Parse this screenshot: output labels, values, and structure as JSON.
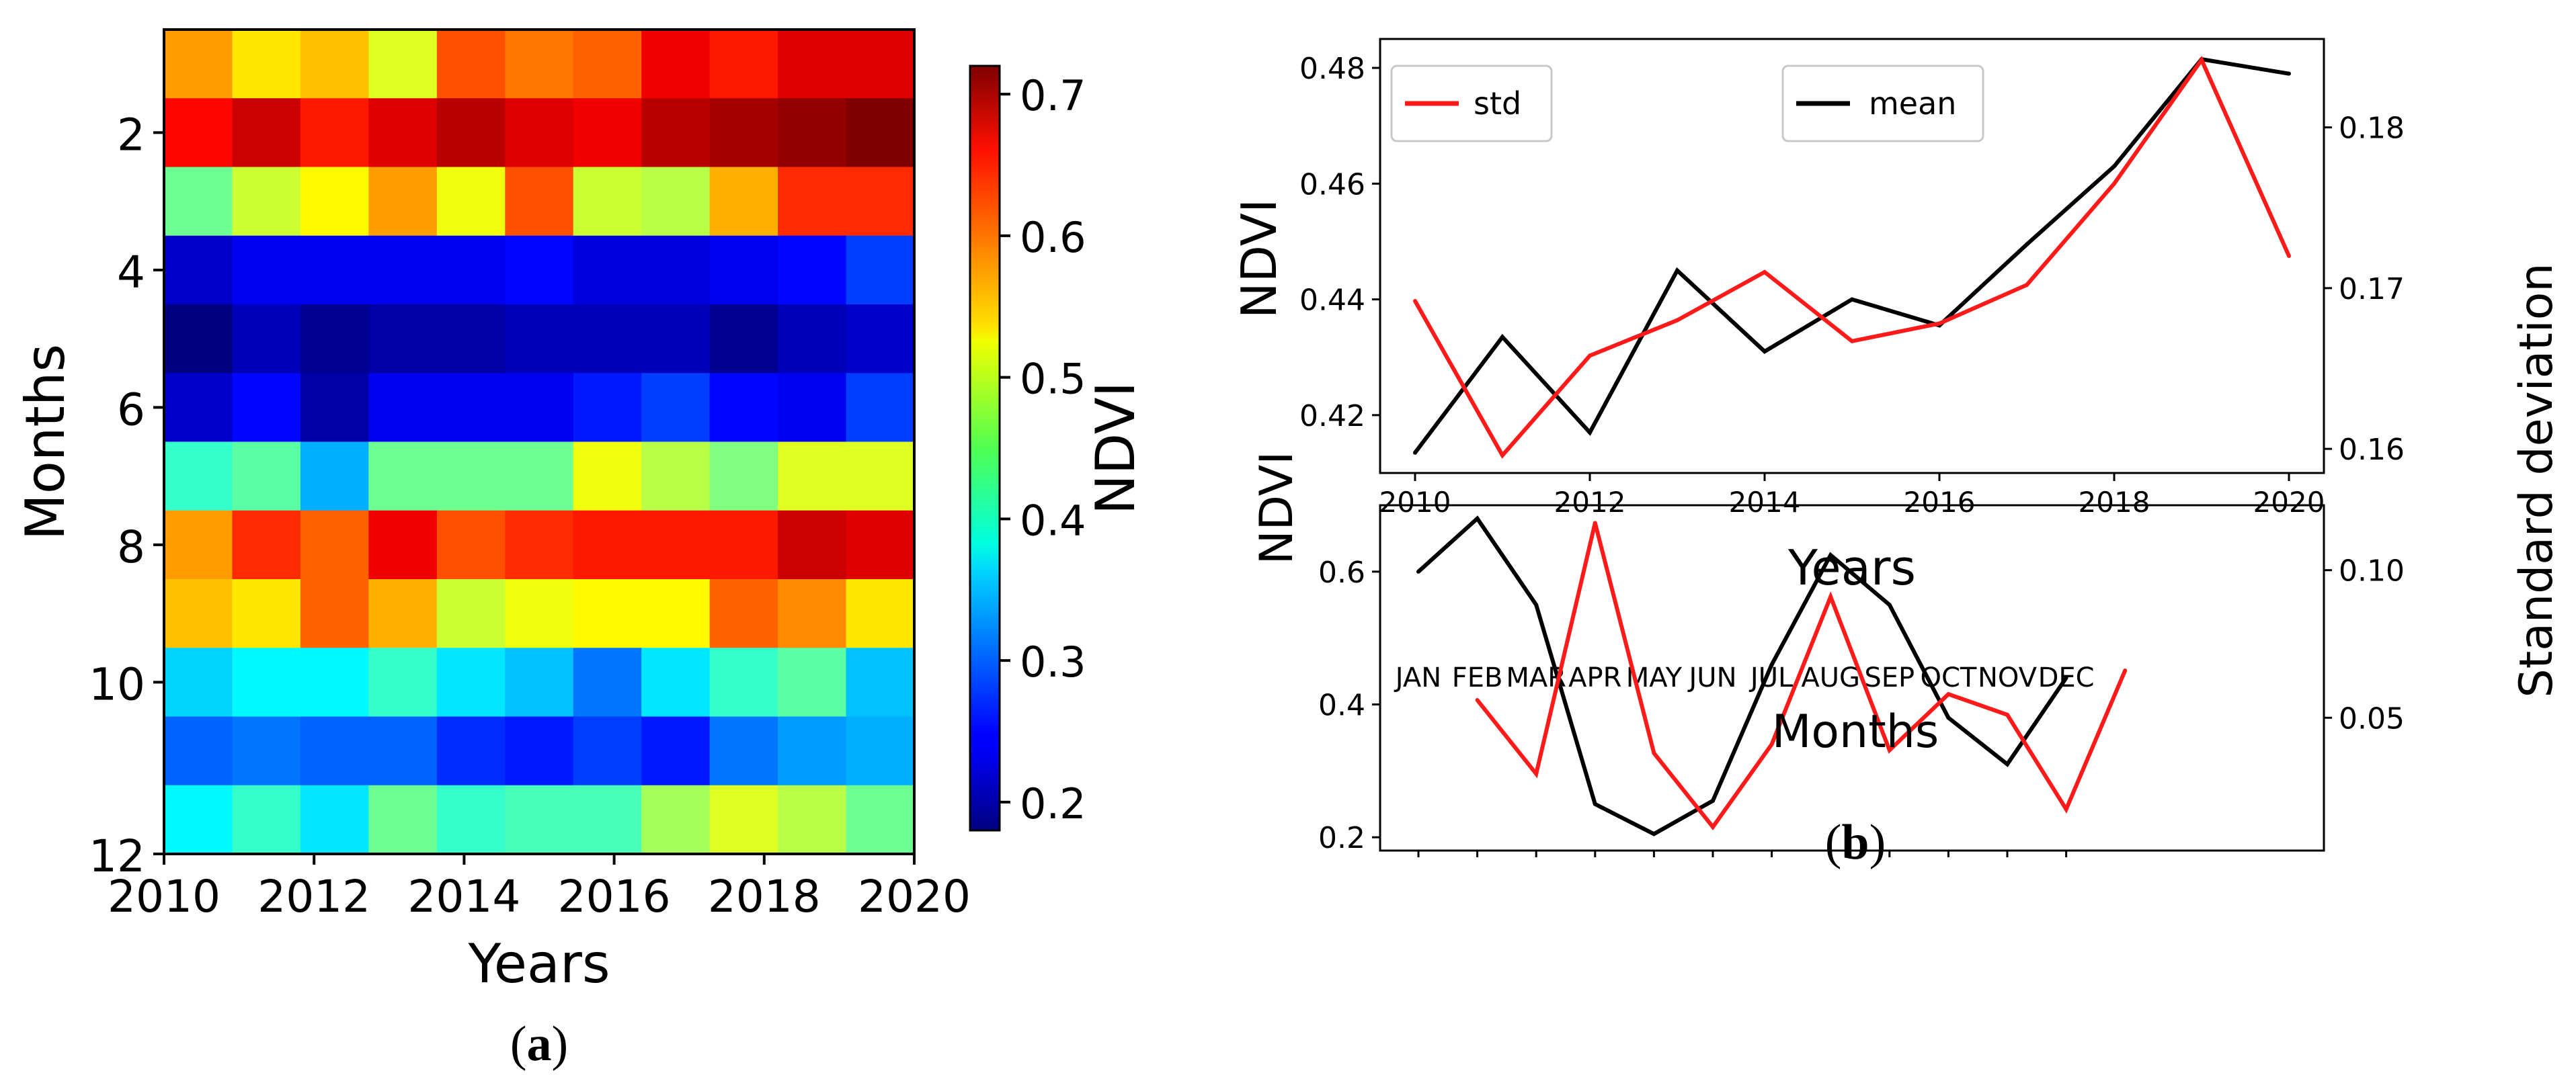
{
  "chart_data": [
    {
      "id": "a",
      "panel_label": "(a)",
      "panel_letter": "a",
      "type": "heatmap",
      "xlabel": "Years",
      "ylabel": "Months",
      "x_ticks": [
        "2010",
        "2012",
        "2014",
        "2016",
        "2018",
        "2020"
      ],
      "y_ticks": [
        "2",
        "4",
        "6",
        "8",
        "10",
        "12"
      ],
      "x_range": [
        2010,
        2020
      ],
      "y_range": [
        0.5,
        12
      ],
      "years": [
        "2010",
        "2011",
        "2012",
        "2013",
        "2014",
        "2015",
        "2016",
        "2017",
        "2018",
        "2019",
        "2020"
      ],
      "months": [
        1,
        2,
        3,
        4,
        5,
        6,
        7,
        8,
        9,
        10,
        11,
        12
      ],
      "values": [
        [
          0.57,
          0.53,
          0.55,
          0.5,
          0.61,
          0.59,
          0.6,
          0.66,
          0.64,
          0.67,
          0.67
        ],
        [
          0.65,
          0.68,
          0.64,
          0.67,
          0.69,
          0.67,
          0.66,
          0.69,
          0.7,
          0.71,
          0.72
        ],
        [
          0.44,
          0.49,
          0.52,
          0.57,
          0.51,
          0.61,
          0.49,
          0.48,
          0.56,
          0.63,
          0.63
        ],
        [
          0.22,
          0.24,
          0.24,
          0.24,
          0.24,
          0.25,
          0.23,
          0.23,
          0.24,
          0.25,
          0.28
        ],
        [
          0.18,
          0.21,
          0.19,
          0.2,
          0.2,
          0.21,
          0.21,
          0.21,
          0.19,
          0.21,
          0.22
        ],
        [
          0.22,
          0.25,
          0.2,
          0.24,
          0.24,
          0.24,
          0.26,
          0.28,
          0.25,
          0.24,
          0.28
        ],
        [
          0.41,
          0.43,
          0.34,
          0.44,
          0.44,
          0.44,
          0.51,
          0.48,
          0.45,
          0.5,
          0.5
        ],
        [
          0.57,
          0.63,
          0.6,
          0.66,
          0.61,
          0.63,
          0.64,
          0.64,
          0.64,
          0.68,
          0.67
        ],
        [
          0.55,
          0.53,
          0.6,
          0.56,
          0.49,
          0.51,
          0.52,
          0.52,
          0.6,
          0.58,
          0.53
        ],
        [
          0.36,
          0.38,
          0.38,
          0.41,
          0.37,
          0.35,
          0.31,
          0.37,
          0.41,
          0.43,
          0.35
        ],
        [
          0.3,
          0.31,
          0.3,
          0.3,
          0.27,
          0.26,
          0.28,
          0.26,
          0.31,
          0.33,
          0.34
        ],
        [
          0.38,
          0.41,
          0.37,
          0.44,
          0.41,
          0.42,
          0.42,
          0.47,
          0.5,
          0.48,
          0.44
        ]
      ],
      "colorbar": {
        "label": "NDVI",
        "min": 0.18,
        "max": 0.72,
        "ticks": [
          "0.2",
          "0.3",
          "0.4",
          "0.5",
          "0.6",
          "0.7"
        ],
        "tick_values": [
          0.2,
          0.3,
          0.4,
          0.5,
          0.6,
          0.7
        ],
        "colormap": "jet"
      }
    },
    {
      "id": "b1",
      "panel_label": "(b)",
      "panel_letter": "b",
      "type": "line",
      "xlabel": "Years",
      "ylabel": "NDVI",
      "y2label": "Standard deviation",
      "x": [
        2010,
        2011,
        2012,
        2013,
        2014,
        2015,
        2016,
        2017,
        2018,
        2019,
        2020
      ],
      "x_ticks": [
        "2010",
        "2012",
        "2014",
        "2016",
        "2018",
        "2020"
      ],
      "x_tick_values": [
        2010,
        2012,
        2014,
        2016,
        2018,
        2020
      ],
      "xlim": [
        2009.6,
        2020.4
      ],
      "ylim": [
        0.41,
        0.485
      ],
      "y_ticks": [
        "0.42",
        "0.44",
        "0.46",
        "0.48"
      ],
      "y_tick_values": [
        0.42,
        0.44,
        0.46,
        0.48
      ],
      "y2lim": [
        0.1585,
        0.1855
      ],
      "y2_ticks": [
        "0.16",
        "0.17",
        "0.18"
      ],
      "y2_tick_values": [
        0.16,
        0.17,
        0.18
      ],
      "legend": [
        "std",
        "mean"
      ],
      "series": [
        {
          "name": "mean",
          "axis": "left",
          "color": "#000000",
          "values": [
            0.4135,
            0.4335,
            0.417,
            0.445,
            0.431,
            0.44,
            0.4355,
            0.4495,
            0.463,
            0.4815,
            0.479
          ]
        },
        {
          "name": "std",
          "axis": "right",
          "color": "#ff1a1a",
          "values": [
            0.1692,
            0.1596,
            0.1658,
            0.168,
            0.171,
            0.1667,
            0.1678,
            0.1702,
            0.1765,
            0.1842,
            0.172
          ]
        }
      ]
    },
    {
      "id": "b2",
      "type": "line",
      "xlabel": "Months",
      "ylabel": "NDVI",
      "categories": [
        "JAN",
        "FEB",
        "MAR",
        "APR",
        "MAY",
        "JUN",
        "JUL",
        "AUG",
        "SEP",
        "OCT",
        "NOV",
        "DEC"
      ],
      "ylim": [
        0.18,
        0.7
      ],
      "y_ticks": [
        "0.2",
        "0.4",
        "0.6"
      ],
      "y_tick_values": [
        0.2,
        0.4,
        0.6
      ],
      "y2lim": [
        0.005,
        0.122
      ],
      "y2_ticks": [
        "0.05",
        "0.10"
      ],
      "y2_tick_values": [
        0.05,
        0.1
      ],
      "series": [
        {
          "name": "mean",
          "axis": "left",
          "color": "#000000",
          "values": [
            0.6,
            0.68,
            0.55,
            0.25,
            0.205,
            0.255,
            0.46,
            0.625,
            0.55,
            0.38,
            0.31,
            0.44
          ]
        },
        {
          "name": "std",
          "axis": "right",
          "color": "#ff1a1a",
          "x_index": [
            1,
            2,
            3,
            4,
            5,
            6,
            7,
            8,
            9,
            10,
            11,
            12
          ],
          "values": [
            0.056,
            0.031,
            0.116,
            0.038,
            0.013,
            0.041,
            0.091,
            0.039,
            0.058,
            0.051,
            0.019,
            0.066
          ]
        }
      ]
    }
  ]
}
